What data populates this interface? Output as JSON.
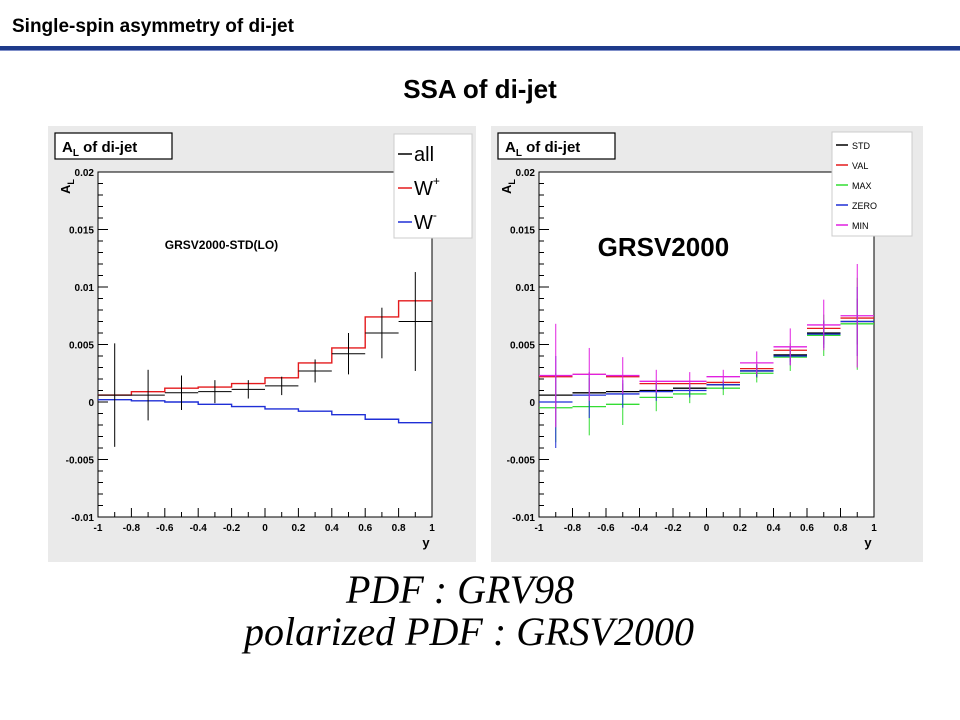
{
  "slide": {
    "title": "Single-spin asymmetry of di-jet",
    "heading": "SSA of di-jet",
    "formula_line1": "PDF :  GRV98",
    "formula_line2": "polarized PDF :   GRSV2000"
  },
  "chart_data": [
    {
      "type": "line",
      "title_main": "A",
      "title_sub": "L",
      "title_rest": " of di-jet",
      "ylabel_main": "A",
      "ylabel_sub": "L",
      "xlabel": "y",
      "annotation": "GRSV2000-STD(LO)",
      "xlim": [
        -1,
        1
      ],
      "ylim": [
        -0.01,
        0.02
      ],
      "xticks": [
        -1,
        -0.8,
        -0.6,
        -0.4,
        -0.2,
        0,
        0.2,
        0.4,
        0.6,
        0.8,
        1
      ],
      "xtick_labels": [
        "-1",
        "-0.8",
        "-0.6",
        "-0.4",
        "-0.2",
        "0",
        "0.2",
        "0.4",
        "0.6",
        "0.8",
        "1"
      ],
      "yticks": [
        -0.01,
        -0.005,
        0,
        0.005,
        0.01,
        0.015,
        0.02
      ],
      "ytick_labels": [
        "-0.01",
        "-0.005",
        "0",
        "0.005",
        "0.01",
        "0.015",
        "0.02"
      ],
      "bin_edges": [
        -1.0,
        -0.8,
        -0.6,
        -0.4,
        -0.2,
        0.0,
        0.2,
        0.4,
        0.6,
        0.8,
        1.0
      ],
      "legend": {
        "position": "top-right",
        "entries": [
          {
            "label": "all",
            "sup": "",
            "color": "#000000"
          },
          {
            "label": "W",
            "sup": "+",
            "color": "#e41a1c"
          },
          {
            "label": "W",
            "sup": "-",
            "color": "#1f2fd6"
          }
        ]
      },
      "series": [
        {
          "name": "W+",
          "style": "hist",
          "color": "#e41a1c",
          "values": [
            0.0006,
            0.0009,
            0.0012,
            0.0013,
            0.0016,
            0.0021,
            0.0034,
            0.0047,
            0.0074,
            0.0088
          ]
        },
        {
          "name": "W-",
          "style": "hist",
          "color": "#1f2fd6",
          "values": [
            0.0002,
            0.0001,
            0.0,
            -0.0002,
            -0.0004,
            -0.0006,
            -0.0008,
            -0.0011,
            -0.0015,
            -0.0018
          ]
        },
        {
          "name": "all",
          "style": "points",
          "color": "#000000",
          "x": [
            -0.9,
            -0.7,
            -0.5,
            -0.3,
            -0.1,
            0.1,
            0.3,
            0.5,
            0.7,
            0.9
          ],
          "y": [
            0.0006,
            0.0006,
            0.0008,
            0.0009,
            0.0011,
            0.0014,
            0.0027,
            0.0042,
            0.006,
            0.007
          ],
          "err": [
            0.0045,
            0.0022,
            0.0015,
            0.001,
            0.0008,
            0.0008,
            0.001,
            0.0018,
            0.0022,
            0.0043
          ]
        }
      ]
    },
    {
      "type": "line",
      "title_main": "A",
      "title_sub": "L",
      "title_rest": " of di-jet",
      "ylabel_main": "A",
      "ylabel_sub": "L",
      "xlabel": "y",
      "annotation": "GRSV2000",
      "xlim": [
        -1,
        1
      ],
      "ylim": [
        -0.01,
        0.02
      ],
      "xticks": [
        -1,
        -0.8,
        -0.6,
        -0.4,
        -0.2,
        0,
        0.2,
        0.4,
        0.6,
        0.8,
        1
      ],
      "xtick_labels": [
        "-1",
        "-0.8",
        "-0.6",
        "-0.4",
        "-0.2",
        "0",
        "0.2",
        "0.4",
        "0.6",
        "0.8",
        "1"
      ],
      "yticks": [
        -0.01,
        -0.005,
        0,
        0.005,
        0.01,
        0.015,
        0.02
      ],
      "ytick_labels": [
        "-0.01",
        "-0.005",
        "0",
        "0.005",
        "0.01",
        "0.015",
        "0.02"
      ],
      "legend": {
        "position": "top-right",
        "entries": [
          {
            "label": "STD",
            "color": "#000000"
          },
          {
            "label": "VAL",
            "color": "#e41a1c"
          },
          {
            "label": "MAX",
            "color": "#33dd33"
          },
          {
            "label": "ZERO",
            "color": "#1f2fd6"
          },
          {
            "label": "MIN",
            "color": "#e020e0"
          }
        ]
      },
      "x": [
        -0.9,
        -0.7,
        -0.5,
        -0.3,
        -0.1,
        0.1,
        0.3,
        0.5,
        0.7,
        0.9
      ],
      "series": [
        {
          "name": "STD",
          "color": "#000000",
          "y": [
            0.0006,
            0.0008,
            0.0009,
            0.001,
            0.0012,
            0.0015,
            0.0027,
            0.0041,
            0.006,
            0.007
          ],
          "err": [
            0.0,
            0.0,
            0.0,
            0.0,
            0.0,
            0.0,
            0.0006,
            0.0006,
            0.001,
            0.002
          ]
        },
        {
          "name": "VAL",
          "color": "#e41a1c",
          "y": [
            0.0022,
            0.0024,
            0.0022,
            0.0016,
            0.0016,
            0.0017,
            0.0029,
            0.0045,
            0.0064,
            0.0073
          ],
          "err": [
            0.0,
            0.0,
            0.0,
            0.0,
            0.0,
            0.0,
            0.0,
            0.0,
            0.0,
            0.0
          ]
        },
        {
          "name": "MAX",
          "color": "#33dd33",
          "y": [
            -0.0005,
            -0.0004,
            -0.0002,
            0.0004,
            0.0007,
            0.0012,
            0.0025,
            0.0039,
            0.0058,
            0.0068
          ],
          "err": [
            0.003,
            0.0025,
            0.0018,
            0.0012,
            0.0008,
            0.0006,
            0.0008,
            0.0012,
            0.0018,
            0.004
          ]
        },
        {
          "name": "ZERO",
          "color": "#1f2fd6",
          "y": [
            0.0,
            0.0006,
            0.0007,
            0.0009,
            0.001,
            0.0015,
            0.0027,
            0.004,
            0.0059,
            0.007
          ],
          "err": [
            0.004,
            0.002,
            0.0012,
            0.0008,
            0.0006,
            0.0004,
            0.0005,
            0.0008,
            0.0012,
            0.003
          ]
        },
        {
          "name": "MIN",
          "color": "#e020e0",
          "y": [
            0.0023,
            0.0024,
            0.0023,
            0.0018,
            0.0018,
            0.0022,
            0.0034,
            0.0048,
            0.0067,
            0.0075
          ],
          "err": [
            0.0045,
            0.0023,
            0.0016,
            0.001,
            0.0008,
            0.0006,
            0.001,
            0.0016,
            0.0022,
            0.0045
          ]
        }
      ]
    }
  ]
}
